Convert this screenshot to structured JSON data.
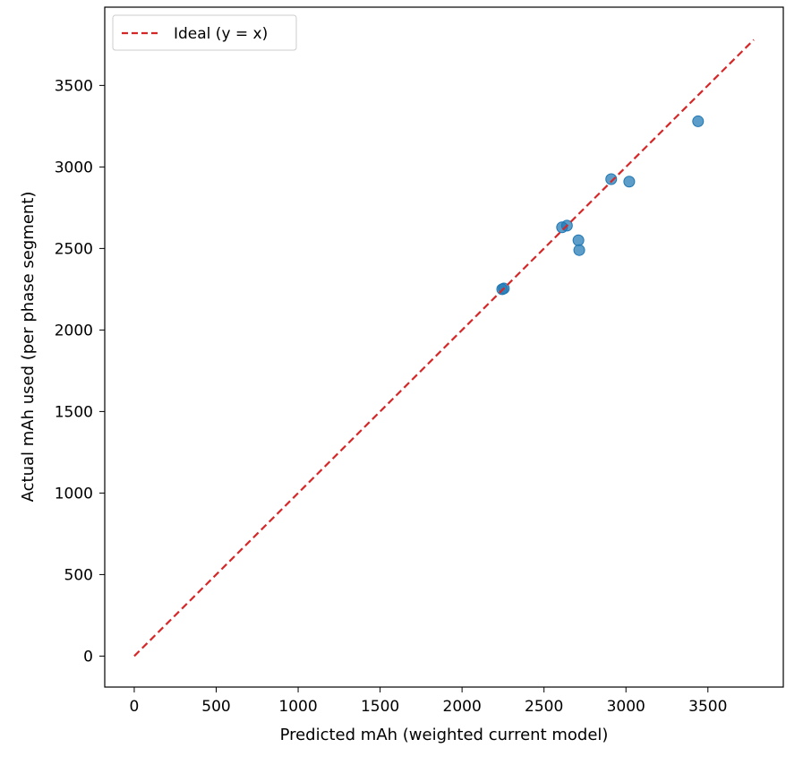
{
  "chart_data": {
    "type": "scatter",
    "xlabel": "Predicted mAh (weighted current model)",
    "ylabel": "Actual mAh used (per phase segment)",
    "xlim": [
      -180,
      3960
    ],
    "ylim": [
      -190,
      3980
    ],
    "xticks": [
      0,
      500,
      1000,
      1500,
      2000,
      2500,
      3000,
      3500
    ],
    "yticks": [
      0,
      500,
      1000,
      1500,
      2000,
      2500,
      3000,
      3500
    ],
    "grid": false,
    "legend_position": "top-left",
    "colors": {
      "points": "#1f77b4",
      "ideal": "#d62728"
    },
    "ideal_line": {
      "label": "Ideal (y = x)",
      "from": 0,
      "to": 3780
    },
    "points": [
      {
        "x": 2245,
        "y": 2250
      },
      {
        "x": 2255,
        "y": 2255
      },
      {
        "x": 2610,
        "y": 2630
      },
      {
        "x": 2640,
        "y": 2640
      },
      {
        "x": 2710,
        "y": 2550
      },
      {
        "x": 2715,
        "y": 2490
      },
      {
        "x": 2910,
        "y": 2925
      },
      {
        "x": 3020,
        "y": 2910
      },
      {
        "x": 3440,
        "y": 3280
      }
    ]
  }
}
